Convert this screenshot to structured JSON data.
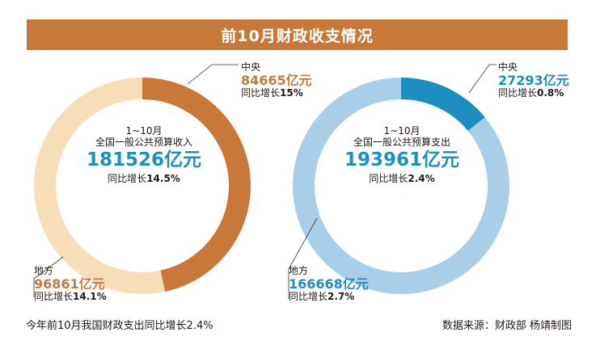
{
  "title": "前10月财政收支情况",
  "colors": {
    "title_bg": "#c8793a",
    "revenue_central": "#c8793a",
    "revenue_local": "#f5deb8",
    "expense_central": "#1a8fc0",
    "expense_local": "#a9cfe8"
  },
  "chart_data": [
    {
      "type": "pie",
      "center": {
        "period": "1~10月",
        "name": "全国一般公共预算收入",
        "total": "181526亿元",
        "yoy_prefix": "同比增长",
        "yoy_value": "14.5%"
      },
      "slices": [
        {
          "name": "中央",
          "value": 84665,
          "value_label": "84665亿元",
          "yoy_prefix": "同比增长",
          "yoy_value": "15%"
        },
        {
          "name": "地方",
          "value": 96861,
          "value_label": "96861亿元",
          "yoy_prefix": "同比增长",
          "yoy_value": "14.1%"
        }
      ]
    },
    {
      "type": "pie",
      "center": {
        "period": "1~10月",
        "name": "全国一般公共预算支出",
        "total": "193961亿元",
        "yoy_prefix": "同比增长",
        "yoy_value": "2.4%"
      },
      "slices": [
        {
          "name": "中央",
          "value": 27293,
          "value_label": "27293亿元",
          "yoy_prefix": "同比增长",
          "yoy_value": "0.8%"
        },
        {
          "name": "地方",
          "value": 166668,
          "value_label": "166668亿元",
          "yoy_prefix": "同比增长",
          "yoy_value": "2.7%"
        }
      ]
    }
  ],
  "footer": {
    "caption": "今年前10月我国财政支出同比增长2.4%",
    "source": "数据来源：财政部 杨靖制图"
  }
}
